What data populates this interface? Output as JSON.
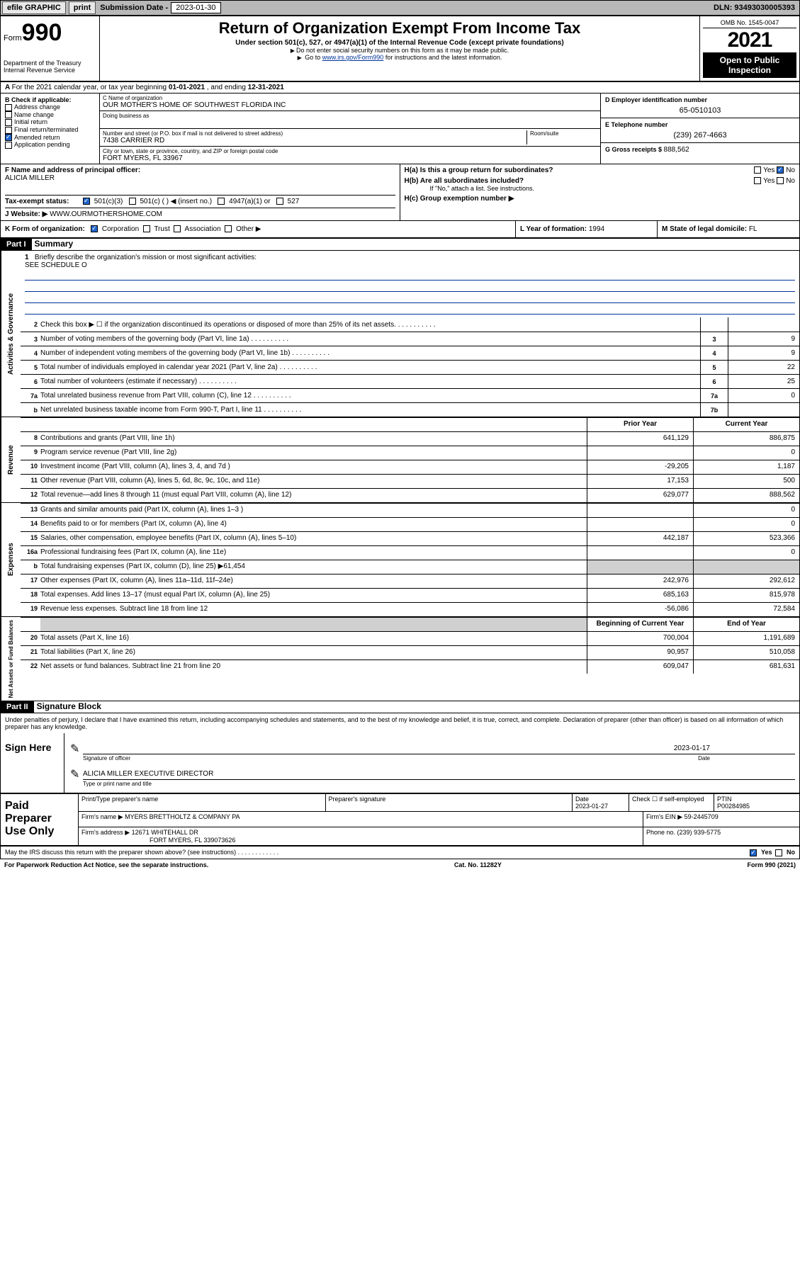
{
  "topbar": {
    "efile": "efile GRAPHIC",
    "print": "print",
    "sub_label": "Submission Date - ",
    "sub_date": "2023-01-30",
    "dln": "DLN: 93493030005393"
  },
  "header": {
    "form_word": "Form",
    "form_num": "990",
    "dept": "Department of the Treasury",
    "irs": "Internal Revenue Service",
    "title": "Return of Organization Exempt From Income Tax",
    "sub": "Under section 501(c), 527, or 4947(a)(1) of the Internal Revenue Code (except private foundations)",
    "note1": "Do not enter social security numbers on this form as it may be made public.",
    "note2_a": "Go to ",
    "note2_link": "www.irs.gov/Form990",
    "note2_b": " for instructions and the latest information.",
    "omb": "OMB No. 1545-0047",
    "year": "2021",
    "inspect": "Open to Public Inspection"
  },
  "row_a": {
    "text": "For the 2021 calendar year, or tax year beginning ",
    "begin": "01-01-2021",
    "mid": " , and ending ",
    "end": "12-31-2021"
  },
  "col_b": {
    "label": "B Check if applicable:",
    "items": [
      "Address change",
      "Name change",
      "Initial return",
      "Final return/terminated",
      "Amended return",
      "Application pending"
    ],
    "checked": [
      false,
      false,
      false,
      false,
      true,
      false
    ]
  },
  "col_c": {
    "name_lbl": "C Name of organization",
    "name": "OUR MOTHER'S HOME OF SOUTHWEST FLORIDA INC",
    "dba_lbl": "Doing business as",
    "addr_lbl": "Number and street (or P.O. box if mail is not delivered to street address)",
    "room_lbl": "Room/suite",
    "addr": "7438 CARRIER RD",
    "city_lbl": "City or town, state or province, country, and ZIP or foreign postal code",
    "city": "FORT MYERS, FL  33967"
  },
  "col_d": {
    "d_lbl": "D Employer identification number",
    "d_val": "65-0510103",
    "e_lbl": "E Telephone number",
    "e_val": "(239) 267-4663",
    "g_lbl": "G Gross receipts $ ",
    "g_val": "888,562"
  },
  "row_f": {
    "f_lbl": "F Name and address of principal officer:",
    "f_val": "ALICIA MILLER",
    "ha": "H(a)  Is this a group return for subordinates?",
    "hb": "H(b)  Are all subordinates included?",
    "hb_note": "If \"No,\" attach a list. See instructions.",
    "hc": "H(c)  Group exemption number ▶",
    "yes": "Yes",
    "no": "No"
  },
  "row_i": {
    "lbl": "Tax-exempt status:",
    "opts": [
      "501(c)(3)",
      "501(c) (  ) ◀ (insert no.)",
      "4947(a)(1) or",
      "527"
    ]
  },
  "row_j": {
    "lbl": "Website: ▶",
    "val": "WWW.OURMOTHERSHOME.COM"
  },
  "row_k": {
    "lbl": "K Form of organization:",
    "opts": [
      "Corporation",
      "Trust",
      "Association",
      "Other ▶"
    ],
    "l_lbl": "L Year of formation: ",
    "l_val": "1994",
    "m_lbl": "M State of legal domicile: ",
    "m_val": "FL"
  },
  "parts": {
    "p1": "Part I",
    "p1t": "Summary",
    "p2": "Part II",
    "p2t": "Signature Block"
  },
  "mission": {
    "n": "1",
    "lbl": "Briefly describe the organization's mission or most significant activities:",
    "val": "SEE SCHEDULE O"
  },
  "gov": {
    "label": "Activities & Governance",
    "rows": [
      {
        "n": "2",
        "t": "Check this box ▶ ☐  if the organization discontinued its operations or disposed of more than 25% of its net assets.",
        "cn": "",
        "cv": ""
      },
      {
        "n": "3",
        "t": "Number of voting members of the governing body (Part VI, line 1a)",
        "cn": "3",
        "cv": "9"
      },
      {
        "n": "4",
        "t": "Number of independent voting members of the governing body (Part VI, line 1b)",
        "cn": "4",
        "cv": "9"
      },
      {
        "n": "5",
        "t": "Total number of individuals employed in calendar year 2021 (Part V, line 2a)",
        "cn": "5",
        "cv": "22"
      },
      {
        "n": "6",
        "t": "Total number of volunteers (estimate if necessary)",
        "cn": "6",
        "cv": "25"
      },
      {
        "n": "7a",
        "t": "Total unrelated business revenue from Part VIII, column (C), line 12",
        "cn": "7a",
        "cv": "0"
      },
      {
        "n": "b",
        "t": "Net unrelated business taxable income from Form 990-T, Part I, line 11",
        "cn": "7b",
        "cv": ""
      }
    ]
  },
  "rev": {
    "label": "Revenue",
    "header": {
      "py": "Prior Year",
      "cy": "Current Year"
    },
    "rows": [
      {
        "n": "8",
        "t": "Contributions and grants (Part VIII, line 1h)",
        "py": "641,129",
        "cy": "886,875"
      },
      {
        "n": "9",
        "t": "Program service revenue (Part VIII, line 2g)",
        "py": "",
        "cy": "0"
      },
      {
        "n": "10",
        "t": "Investment income (Part VIII, column (A), lines 3, 4, and 7d )",
        "py": "-29,205",
        "cy": "1,187"
      },
      {
        "n": "11",
        "t": "Other revenue (Part VIII, column (A), lines 5, 6d, 8c, 9c, 10c, and 11e)",
        "py": "17,153",
        "cy": "500"
      },
      {
        "n": "12",
        "t": "Total revenue—add lines 8 through 11 (must equal Part VIII, column (A), line 12)",
        "py": "629,077",
        "cy": "888,562"
      }
    ]
  },
  "exp": {
    "label": "Expenses",
    "rows": [
      {
        "n": "13",
        "t": "Grants and similar amounts paid (Part IX, column (A), lines 1–3 )",
        "py": "",
        "cy": "0"
      },
      {
        "n": "14",
        "t": "Benefits paid to or for members (Part IX, column (A), line 4)",
        "py": "",
        "cy": "0"
      },
      {
        "n": "15",
        "t": "Salaries, other compensation, employee benefits (Part IX, column (A), lines 5–10)",
        "py": "442,187",
        "cy": "523,366"
      },
      {
        "n": "16a",
        "t": "Professional fundraising fees (Part IX, column (A), line 11e)",
        "py": "",
        "cy": "0"
      },
      {
        "n": "b",
        "t": "Total fundraising expenses (Part IX, column (D), line 25) ▶61,454",
        "py": "GRAY",
        "cy": "GRAY"
      },
      {
        "n": "17",
        "t": "Other expenses (Part IX, column (A), lines 11a–11d, 11f–24e)",
        "py": "242,976",
        "cy": "292,612"
      },
      {
        "n": "18",
        "t": "Total expenses. Add lines 13–17 (must equal Part IX, column (A), line 25)",
        "py": "685,163",
        "cy": "815,978"
      },
      {
        "n": "19",
        "t": "Revenue less expenses. Subtract line 18 from line 12",
        "py": "-56,086",
        "cy": "72,584"
      }
    ]
  },
  "na": {
    "label": "Net Assets or Fund Balances",
    "header": {
      "py": "Beginning of Current Year",
      "cy": "End of Year"
    },
    "rows": [
      {
        "n": "20",
        "t": "Total assets (Part X, line 16)",
        "py": "700,004",
        "cy": "1,191,689"
      },
      {
        "n": "21",
        "t": "Total liabilities (Part X, line 26)",
        "py": "90,957",
        "cy": "510,058"
      },
      {
        "n": "22",
        "t": "Net assets or fund balances. Subtract line 21 from line 20",
        "py": "609,047",
        "cy": "681,631"
      }
    ]
  },
  "sig": {
    "decl": "Under penalties of perjury, I declare that I have examined this return, including accompanying schedules and statements, and to the best of my knowledge and belief, it is true, correct, and complete. Declaration of preparer (other than officer) is based on all information of which preparer has any knowledge.",
    "side": "Sign Here",
    "sig_lbl": "Signature of officer",
    "date_lbl": "Date",
    "date_val": "2023-01-17",
    "name": "ALICIA MILLER  EXECUTIVE DIRECTOR",
    "name_lbl": "Type or print name and title"
  },
  "prep": {
    "side": "Paid Preparer Use Only",
    "r1": {
      "c1": "Print/Type preparer's name",
      "c2": "Preparer's signature",
      "c3": "Date",
      "c3v": "2023-01-27",
      "c4": "Check ☐ if self-employed",
      "c5": "PTIN",
      "c5v": "P00284985"
    },
    "r2": {
      "c1": "Firm's name      ▶",
      "c1v": "MYERS BRETTHOLTZ & COMPANY PA",
      "c2": "Firm's EIN ▶",
      "c2v": "59-2445709"
    },
    "r3": {
      "c1": "Firm's address ▶",
      "c1v": "12671 WHITEHALL DR",
      "c1v2": "FORT MYERS, FL  339073626",
      "c2": "Phone no. ",
      "c2v": "(239) 939-5775"
    }
  },
  "bottom": {
    "q": "May the IRS discuss this return with the preparer shown above? (see instructions)",
    "yes": "Yes",
    "no": "No"
  },
  "footer": {
    "l": "For Paperwork Reduction Act Notice, see the separate instructions.",
    "m": "Cat. No. 11282Y",
    "r": "Form 990 (2021)"
  }
}
